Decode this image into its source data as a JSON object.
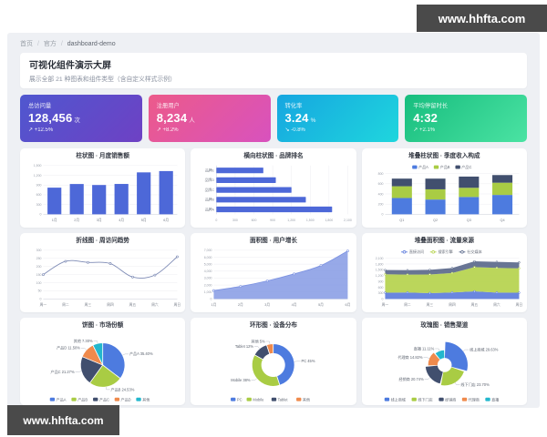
{
  "watermark": {
    "text": "www.hhfta.com",
    "bg": "#4a4a4a",
    "fg": "#ffffff"
  },
  "breadcrumb": [
    "首页",
    "官方",
    "dashboard-demo"
  ],
  "header": {
    "title": "可视化组件演示大屏",
    "subtitle": "展示全部 21 种图表和组件类型（含自定义样式示例）"
  },
  "stats": [
    {
      "label": "总访问量",
      "value": "128,456",
      "unit": "次",
      "delta": "↗ +12.5%",
      "gradient": [
        "#4f57cf",
        "#6e41c4"
      ]
    },
    {
      "label": "注册用户",
      "value": "8,234",
      "unit": "人",
      "delta": "↗ +8.2%",
      "gradient": [
        "#ec5a8a",
        "#d852be"
      ]
    },
    {
      "label": "转化率",
      "value": "3.24",
      "unit": "%",
      "delta": "↘ -0.8%",
      "gradient": [
        "#16a6e0",
        "#1fd6dd"
      ]
    },
    {
      "label": "平均停留时长",
      "value": "4:32",
      "unit": "",
      "delta": "↗ +2.1%",
      "gradient": [
        "#17bd7e",
        "#4be3a3"
      ]
    }
  ],
  "charts": [
    {
      "title": "柱状图 · 月度销售额",
      "chart_data": {
        "type": "bar",
        "categories": [
          "1月",
          "2月",
          "3月",
          "4月",
          "5月",
          "6月"
        ],
        "values": [
          820,
          932,
          901,
          934,
          1290,
          1330
        ],
        "ylim": [
          0,
          1500
        ],
        "ytick": 300,
        "color": "#4d68d8",
        "grid": true
      }
    },
    {
      "title": "横向柱状图 · 品牌排名",
      "chart_data": {
        "type": "hbar",
        "categories": [
          "品牌E",
          "品牌D",
          "品牌C",
          "品牌B",
          "品牌A"
        ],
        "values": [
          750,
          950,
          1200,
          1430,
          1850
        ],
        "xlim": [
          0,
          2100
        ],
        "xtick": 300,
        "color": "#4d68d8",
        "grid": true
      }
    },
    {
      "title": "堆叠柱状图 · 季度收入构成",
      "chart_data": {
        "type": "stacked-bar",
        "categories": [
          "Q1",
          "Q2",
          "Q3",
          "Q4"
        ],
        "series": [
          {
            "name": "产品A",
            "color": "#4d7bdf",
            "values": [
              320,
              290,
              340,
              380
            ]
          },
          {
            "name": "产品B",
            "color": "#a9cc44",
            "values": [
              230,
              200,
              180,
              240
            ]
          },
          {
            "name": "产品C",
            "color": "#414f6e",
            "values": [
              150,
              210,
              220,
              150
            ]
          }
        ],
        "ylim": [
          0,
          800
        ],
        "ytick": 200,
        "legend": true,
        "legend_position": "top",
        "grid": true
      }
    },
    {
      "title": "折线图 · 周访问趋势",
      "chart_data": {
        "type": "line",
        "categories": [
          "周一",
          "周二",
          "周三",
          "周四",
          "周五",
          "周六",
          "周日"
        ],
        "values": [
          150,
          232,
          225,
          218,
          135,
          147,
          260
        ],
        "ylim": [
          0,
          300
        ],
        "ytick": 50,
        "color": "#7e8bb5",
        "grid": true
      }
    },
    {
      "title": "面积图 · 用户增长",
      "chart_data": {
        "type": "area",
        "categories": [
          "1月",
          "2月",
          "3月",
          "4月",
          "5月",
          "6月"
        ],
        "values": [
          1200,
          1800,
          2600,
          3600,
          4800,
          6900
        ],
        "ylim": [
          0,
          7000
        ],
        "ytick": 1000,
        "color": "#7d93e2",
        "grid": true
      }
    },
    {
      "title": "堆叠面积图 · 流量来源",
      "chart_data": {
        "type": "stacked-area",
        "categories": [
          "周一",
          "周二",
          "周三",
          "周四",
          "周五",
          "周六",
          "周日"
        ],
        "series": [
          {
            "name": "直接访问",
            "color": "#5f7ddd",
            "values": [
              320,
              332,
              301,
              334,
              390,
              330,
              320
            ]
          },
          {
            "name": "搜索引擎",
            "color": "#b6d34f",
            "values": [
              950,
              920,
              960,
              1000,
              1250,
              1270,
              1260
            ]
          },
          {
            "name": "社交媒体",
            "color": "#5c6b8c",
            "values": [
              220,
              230,
              240,
              260,
              300,
              310,
              300
            ]
          }
        ],
        "ylim": [
          0,
          2100
        ],
        "ytick": 300,
        "legend": true,
        "legend_position": "top",
        "grid": true
      }
    },
    {
      "title": "饼图 · 市场份额",
      "chart_data": {
        "type": "pie",
        "items": [
          {
            "name": "产品A",
            "value": 35.4,
            "pct": "35.40%",
            "color": "#4d7bdf"
          },
          {
            "name": "产品B",
            "value": 24.53,
            "pct": "24.53%",
            "color": "#a9cc44"
          },
          {
            "name": "产品C",
            "value": 21.27,
            "pct": "21.27%",
            "color": "#414f6e"
          },
          {
            "name": "产品D",
            "value": 11.5,
            "pct": "11.50%",
            "color": "#ef8a4c"
          },
          {
            "name": "其他",
            "value": 7.3,
            "pct": "7.30%",
            "color": "#23b7cd"
          }
        ],
        "legend": true,
        "legend_position": "bottom",
        "labels": true
      }
    },
    {
      "title": "环形图 · 设备分布",
      "chart_data": {
        "type": "donut",
        "items": [
          {
            "name": "PC",
            "value": 45,
            "pct": "45%",
            "color": "#4d7bdf"
          },
          {
            "name": "Mobile",
            "value": 38,
            "pct": "38%",
            "color": "#a9cc44"
          },
          {
            "name": "Tablet",
            "value": 12,
            "pct": "12%",
            "color": "#414f6e"
          },
          {
            "name": "其他",
            "value": 5,
            "pct": "5%",
            "color": "#ef8a4c"
          }
        ],
        "legend": true,
        "legend_position": "bottom",
        "labels": true
      }
    },
    {
      "title": "玫瑰图 · 销售渠道",
      "chart_data": {
        "type": "rose",
        "items": [
          {
            "name": "线上商城",
            "value": 29.63,
            "pct": "29.63%",
            "color": "#4d7bdf"
          },
          {
            "name": "线下门店",
            "value": 23.7,
            "pct": "23.70%",
            "color": "#a9cc44"
          },
          {
            "name": "经销商",
            "value": 20.74,
            "pct": "20.74%",
            "color": "#414f6e"
          },
          {
            "name": "代理商",
            "value": 14.82,
            "pct": "14.82%",
            "color": "#ef8a4c"
          },
          {
            "name": "直播",
            "value": 11.11,
            "pct": "11.11%",
            "color": "#23b7cd"
          }
        ],
        "legend": true,
        "legend_position": "bottom",
        "labels": true
      }
    }
  ]
}
